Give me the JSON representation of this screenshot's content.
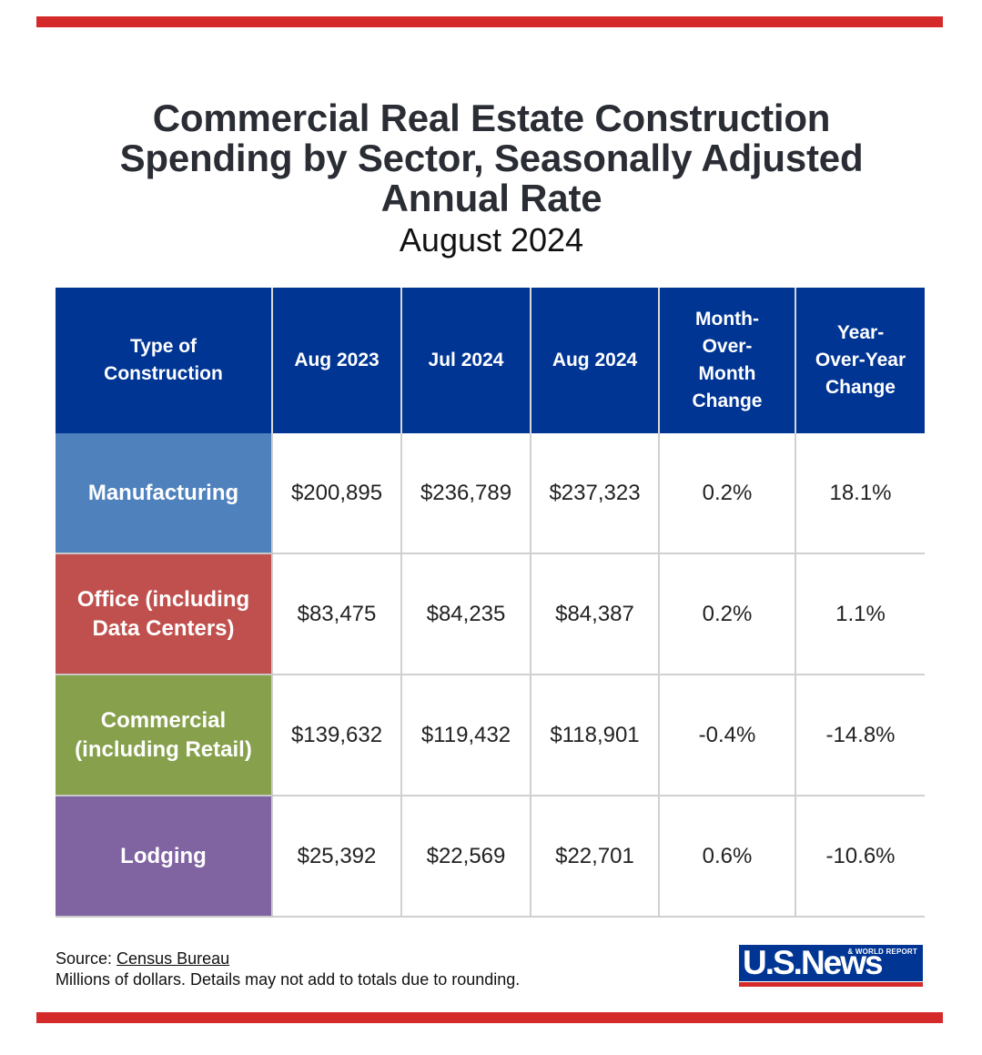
{
  "header": {
    "title_line1": "Commercial Real Estate Construction",
    "title_line2": "Spending by Sector, Seasonally Adjusted",
    "title_line3": "Annual Rate",
    "subtitle": "August 2024"
  },
  "colors": {
    "accent_red": "#d42a2a",
    "header_blue": "#003594",
    "manufacturing": "#4f81bd",
    "office": "#c0504d",
    "commercial": "#86a04c",
    "lodging": "#8063a1"
  },
  "chart_data": {
    "type": "table",
    "columns": [
      {
        "line1": "Type of",
        "line2": "Construction",
        "line3": "",
        "line4": ""
      },
      {
        "line1": "Aug 2023",
        "line2": "",
        "line3": "",
        "line4": ""
      },
      {
        "line1": "Jul 2024",
        "line2": "",
        "line3": "",
        "line4": ""
      },
      {
        "line1": "Aug 2024",
        "line2": "",
        "line3": "",
        "line4": ""
      },
      {
        "line1": "Month-",
        "line2": "Over-",
        "line3": "Month",
        "line4": "Change"
      },
      {
        "line1": "Year-",
        "line2": "Over-Year",
        "line3": "Change",
        "line4": ""
      }
    ],
    "rows": [
      {
        "name_line1": "Manufacturing",
        "name_line2": "",
        "color": "#4f81bd",
        "cells": [
          "$200,895",
          "$236,789",
          "$237,323",
          "0.2%",
          "18.1%"
        ]
      },
      {
        "name_line1": "Office (including",
        "name_line2": "Data Centers)",
        "color": "#c0504d",
        "cells": [
          "$83,475",
          "$84,235",
          "$84,387",
          "0.2%",
          "1.1%"
        ]
      },
      {
        "name_line1": "Commercial",
        "name_line2": "(including Retail)",
        "color": "#86a04c",
        "cells": [
          "$139,632",
          "$119,432",
          "$118,901",
          "-0.4%",
          "-14.8%"
        ]
      },
      {
        "name_line1": "Lodging",
        "name_line2": "",
        "color": "#8063a1",
        "cells": [
          "$25,392",
          "$22,569",
          "$22,701",
          "0.6%",
          "-10.6%"
        ]
      }
    ]
  },
  "footer": {
    "source_prefix": "Source: ",
    "source_link": "Census Bureau",
    "note": "Millions of dollars. Details may not add to totals due to rounding."
  },
  "logo": {
    "main": "U.S.News",
    "small_line1": "& WORLD REPORT"
  }
}
